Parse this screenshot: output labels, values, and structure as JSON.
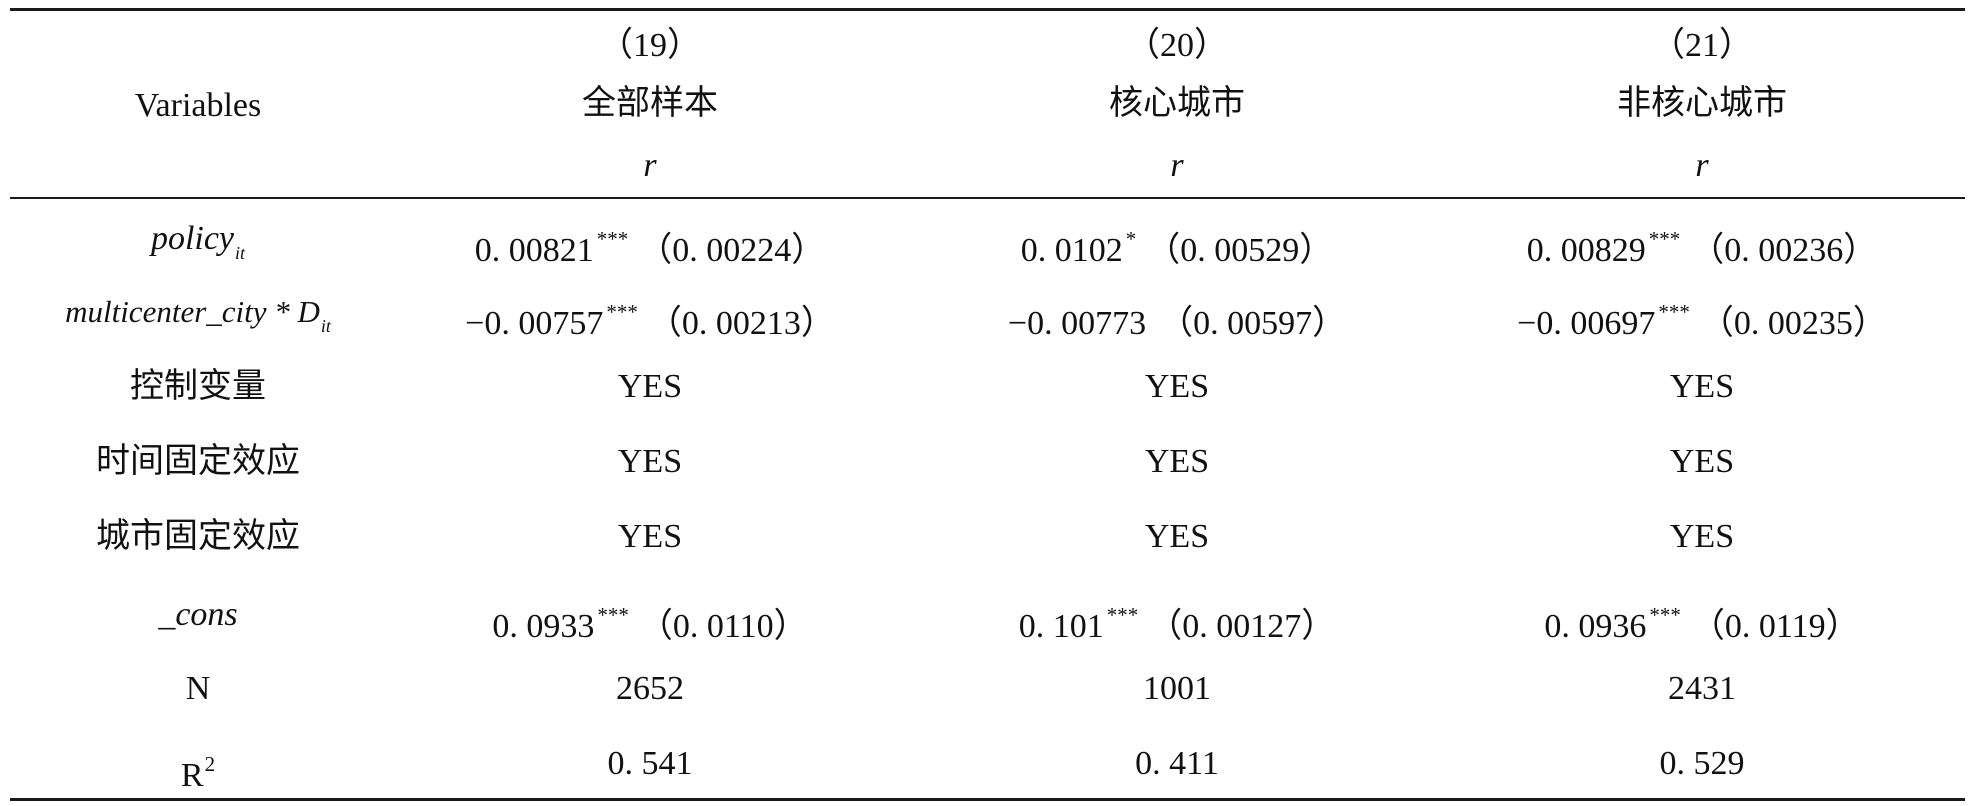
{
  "header": {
    "variables_label": "Variables",
    "columns": [
      {
        "number": "（19）",
        "sample": "全部样本",
        "dep_var": "r"
      },
      {
        "number": "（20）",
        "sample": "核心城市",
        "dep_var": "r"
      },
      {
        "number": "（21）",
        "sample": "非核心城市",
        "dep_var": "r"
      }
    ]
  },
  "rows": [
    {
      "var_main": "policy",
      "var_sub": "it",
      "cells": [
        {
          "coef": "0. 00821",
          "stars": "***",
          "se": "（0. 00224）"
        },
        {
          "coef": "0. 0102",
          "stars": "*",
          "se": "（0. 00529）"
        },
        {
          "coef": "0. 00829",
          "stars": "***",
          "se": "（0. 00236）"
        }
      ]
    },
    {
      "var_main": "multicenter_city * D",
      "var_sub": "it",
      "cells": [
        {
          "coef": "−0. 00757",
          "stars": "***",
          "se": "（0. 00213）"
        },
        {
          "coef": "−0. 00773",
          "stars": "",
          "se": "（0. 00597）"
        },
        {
          "coef": "−0. 00697",
          "stars": "***",
          "se": "（0. 00235）"
        }
      ]
    },
    {
      "var": "控制变量",
      "cells": [
        "YES",
        "YES",
        "YES"
      ]
    },
    {
      "var": "时间固定效应",
      "cells": [
        "YES",
        "YES",
        "YES"
      ]
    },
    {
      "var": "城市固定效应",
      "cells": [
        "YES",
        "YES",
        "YES"
      ]
    },
    {
      "var": "_cons",
      "cells": [
        {
          "coef": "0. 0933",
          "stars": "***",
          "se": "（0. 0110）"
        },
        {
          "coef": "0. 101",
          "stars": "***",
          "se": "（0. 00127）"
        },
        {
          "coef": "0. 0936",
          "stars": "***",
          "se": "（0. 0119）"
        }
      ]
    },
    {
      "var": "N",
      "cells": [
        "2652",
        "1001",
        "2431"
      ]
    },
    {
      "var": "R",
      "var_sup": "2",
      "cells": [
        "0. 541",
        "0. 411",
        "0. 529"
      ]
    }
  ]
}
